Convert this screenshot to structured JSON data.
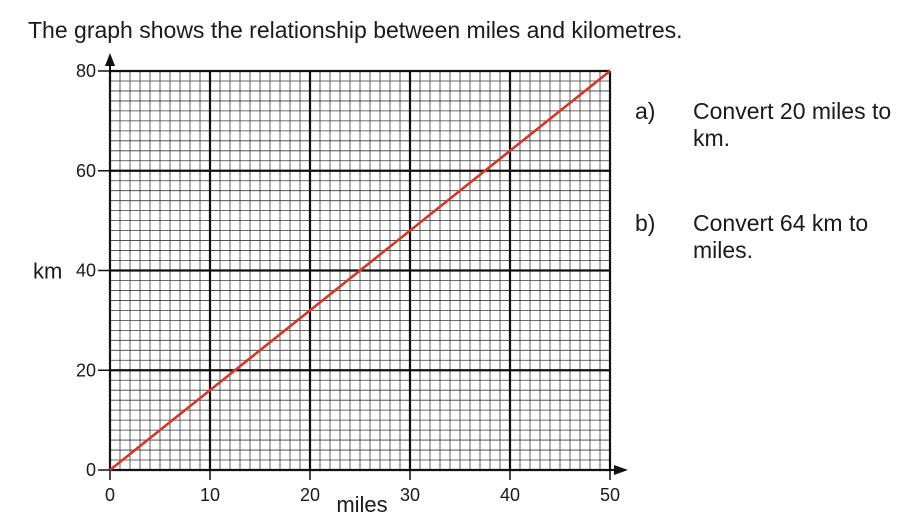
{
  "intro_text": "The graph shows the relationship between miles and kilometres.",
  "questions": [
    {
      "label": "a)",
      "text": "Convert 20 miles to km."
    },
    {
      "label": "b)",
      "text": "Convert 64 km to miles."
    }
  ],
  "chart_data": {
    "type": "line",
    "title": "",
    "xlabel": "miles",
    "ylabel": "km",
    "xlim": [
      0,
      50
    ],
    "ylim": [
      0,
      80
    ],
    "x_ticks": [
      0,
      10,
      20,
      30,
      40,
      50
    ],
    "y_ticks": [
      0,
      20,
      40,
      60,
      80
    ],
    "grid": true,
    "series": [
      {
        "x": [
          0,
          50
        ],
        "y": [
          0,
          80
        ],
        "color": "#d03a2a"
      }
    ]
  }
}
